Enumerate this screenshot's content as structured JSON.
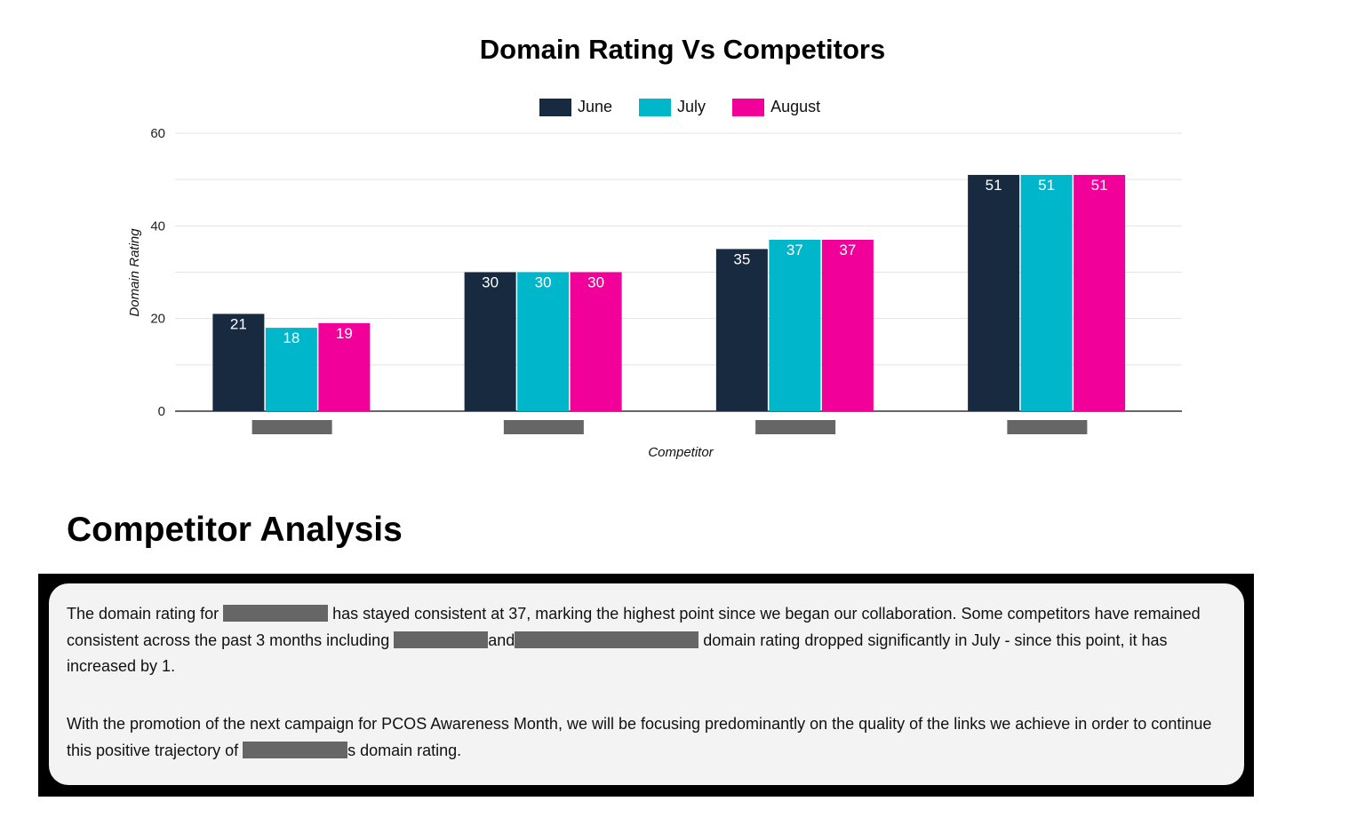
{
  "chart_data": {
    "type": "bar",
    "title": "Domain Rating Vs Competitors",
    "xlabel": "Competitor",
    "ylabel": "Domain Rating",
    "ylim": [
      0,
      60
    ],
    "yticks": [
      0,
      20,
      40,
      60
    ],
    "grid": true,
    "legend_position": "top",
    "categories": [
      "",
      "",
      "",
      ""
    ],
    "categories_redacted": true,
    "series": [
      {
        "name": "June",
        "color": "#172a40",
        "values": [
          21,
          30,
          35,
          51
        ]
      },
      {
        "name": "July",
        "color": "#00b6cb",
        "values": [
          18,
          30,
          37,
          51
        ]
      },
      {
        "name": "August",
        "color": "#f1009a",
        "values": [
          19,
          30,
          37,
          51
        ]
      }
    ]
  },
  "analysis": {
    "title": "Competitor Analysis",
    "p1": {
      "a": "The domain rating for ",
      "b": " has stayed consistent at 37, marking the highest point since we began our collaboration. Some competitors have remained consistent across the past 3 months including ",
      "c": "and",
      "d": " domain rating dropped significantly in July - since this point, it has increased by 1."
    },
    "p2": {
      "a": "With the promotion of the next campaign for PCOS Awareness Month, we will be focusing predominantly on the quality of the links we achieve in order to continue this positive trajectory of ",
      "b": "s domain rating."
    }
  }
}
